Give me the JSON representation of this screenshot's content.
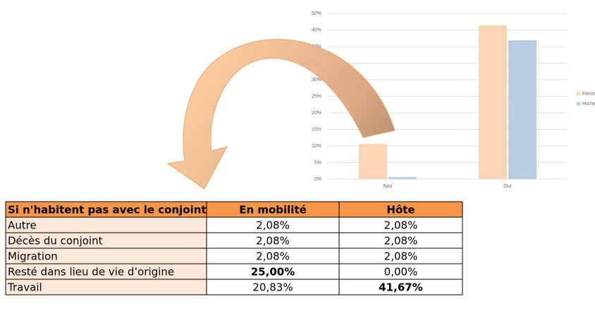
{
  "chart_data": {
    "type": "bar",
    "categories": [
      "Non",
      "Oui"
    ],
    "series": [
      {
        "name": "Femmes",
        "color": "#fbd4b4",
        "values": [
          10.6,
          46.4
        ]
      },
      {
        "name": "Hommes",
        "color": "#b8cce4",
        "values": [
          0.6,
          41.9
        ]
      }
    ],
    "ylim": [
      0,
      50
    ],
    "yticks": [
      {
        "value": 0,
        "label": "0%"
      },
      {
        "value": 5,
        "label": "5%"
      },
      {
        "value": 10,
        "label": "10%"
      },
      {
        "value": 15,
        "label": "15%"
      },
      {
        "value": 20,
        "label": "20%"
      },
      {
        "value": 25,
        "label": "25%"
      },
      {
        "value": 30,
        "label": "30%"
      },
      {
        "value": 35,
        "label": "35%"
      },
      {
        "value": 40,
        "label": "40%"
      },
      {
        "value": 45,
        "label": "45%"
      },
      {
        "value": 50,
        "label": "50%"
      }
    ],
    "grid": true,
    "legend": "right"
  },
  "table": {
    "header": [
      "Si n'habitent pas avec le conjoint",
      "En mobilité",
      "Hôte"
    ],
    "rows": [
      [
        "Autre",
        "2,08%",
        "2,08%"
      ],
      [
        "Décès du conjoint",
        "2,08%",
        "2,08%"
      ],
      [
        "Migration",
        "2,08%",
        "2,08%"
      ],
      [
        "Resté dans lieu de vie d’origine",
        "25,00%",
        "0,00%"
      ],
      [
        "Travail",
        "20,83%",
        "41,67%"
      ]
    ],
    "highlight": [
      [
        3,
        1
      ],
      [
        4,
        2
      ]
    ]
  }
}
